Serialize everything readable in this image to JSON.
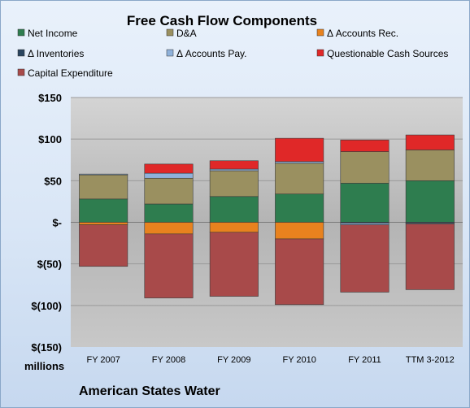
{
  "chart_data": {
    "type": "bar",
    "stacked": true,
    "title": "Free Cash Flow Components",
    "categories": [
      "FY 2007",
      "FY 2008",
      "FY 2009",
      "FY 2010",
      "FY 2011",
      "TTM 3-2012"
    ],
    "series": [
      {
        "name": "Net Income",
        "color": "#2e7d4f",
        "values": [
          28,
          22,
          31,
          34,
          47,
          50
        ]
      },
      {
        "name": "D&A",
        "color": "#9a9060",
        "values": [
          29,
          31,
          31,
          37,
          38,
          37
        ]
      },
      {
        "name": "Δ Accounts Rec.",
        "color": "#e8821e",
        "values": [
          -3,
          -14,
          -12,
          -20,
          0,
          0
        ]
      },
      {
        "name": "Δ Inventories",
        "color": "#2a4560",
        "values": [
          0,
          0,
          0,
          0,
          -1,
          -1
        ]
      },
      {
        "name": "Δ Accounts Pay.",
        "color": "#8fb1da",
        "values": [
          1,
          6,
          2,
          2,
          -2,
          -1
        ]
      },
      {
        "name": "Questionable Cash Sources",
        "color": "#e02828",
        "values": [
          0,
          11,
          10,
          28,
          14,
          18
        ]
      },
      {
        "name": "Capital Expenditure",
        "color": "#a84a4a",
        "values": [
          -50,
          -77,
          -77,
          -79,
          -81,
          -79
        ]
      }
    ],
    "ylim": [
      -150,
      150
    ],
    "yticks": [
      -150,
      -100,
      -50,
      0,
      50,
      100,
      150
    ],
    "ytick_labels": [
      "$(150)",
      "$(100)",
      "$(50)",
      "$-",
      "$50",
      "$100",
      "$150"
    ],
    "unit_label": "millions",
    "legend_position": "top",
    "grid": true
  },
  "footer_label": "American States Water"
}
